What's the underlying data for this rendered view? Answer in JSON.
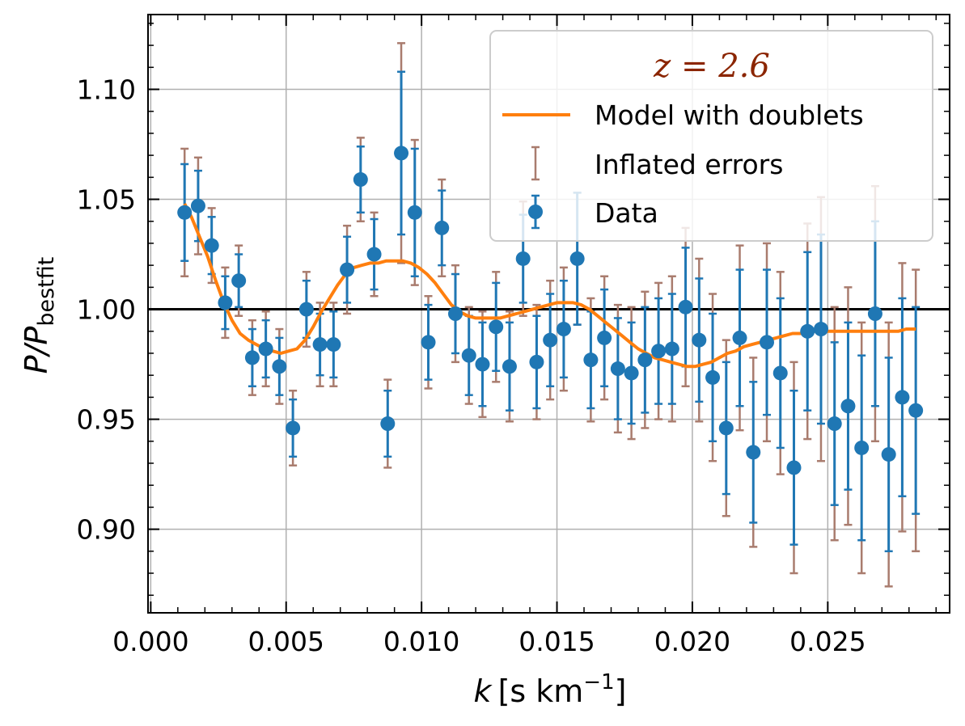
{
  "chart_data": {
    "type": "scatter",
    "xlabel": "k [s km⁻¹]",
    "xlabel_parts": {
      "var": "k",
      "unit": "[s km",
      "sup": "−1",
      "close": "]"
    },
    "ylabel_parts": {
      "main": "P/P",
      "sub": "bestfit"
    },
    "xlim": [
      -0.0001,
      0.0295
    ],
    "ylim": [
      0.862,
      1.134
    ],
    "xticks": [
      0.0,
      0.005,
      0.01,
      0.015,
      0.02,
      0.025
    ],
    "xtick_labels": [
      "0.000",
      "0.005",
      "0.010",
      "0.015",
      "0.020",
      "0.025"
    ],
    "yticks": [
      0.9,
      0.95,
      1.0,
      1.05,
      1.1
    ],
    "ytick_labels": [
      "0.90",
      "0.95",
      "1.00",
      "1.05",
      "1.10"
    ],
    "grid": true,
    "reference_line": 1.0,
    "legend_title": "z = 2.6",
    "legend_position": "top-right",
    "colors": {
      "data": "#1f77b4",
      "inflated": "#a97c6e",
      "model": "#ff7f0e",
      "title": "#8b2500",
      "grid": "#b0b0b0"
    },
    "series": [
      {
        "name": "Data",
        "x": [
          0.00125,
          0.00175,
          0.00225,
          0.00275,
          0.00325,
          0.00375,
          0.00425,
          0.00475,
          0.00525,
          0.00575,
          0.00625,
          0.00675,
          0.00725,
          0.00775,
          0.00825,
          0.00875,
          0.00925,
          0.00975,
          0.01025,
          0.01075,
          0.01125,
          0.01175,
          0.01225,
          0.01275,
          0.01325,
          0.01375,
          0.01425,
          0.01475,
          0.01525,
          0.01575,
          0.01625,
          0.01675,
          0.01725,
          0.01775,
          0.01825,
          0.01875,
          0.01925,
          0.01975,
          0.02025,
          0.02075,
          0.02125,
          0.02175,
          0.02225,
          0.02275,
          0.02325,
          0.02375,
          0.02425,
          0.02475,
          0.02525,
          0.02575,
          0.02625,
          0.02675,
          0.02725,
          0.02775,
          0.02825
        ],
        "y": [
          1.044,
          1.047,
          1.029,
          1.003,
          1.013,
          0.978,
          0.982,
          0.974,
          0.946,
          1.0,
          0.984,
          0.984,
          1.018,
          1.059,
          1.025,
          0.948,
          1.071,
          1.044,
          0.985,
          1.037,
          0.998,
          0.979,
          0.975,
          0.992,
          0.974,
          1.023,
          0.976,
          0.986,
          0.991,
          1.023,
          0.977,
          0.987,
          0.973,
          0.971,
          0.977,
          0.981,
          0.982,
          1.001,
          0.986,
          0.969,
          0.946,
          0.987,
          0.935,
          0.985,
          0.971,
          0.928,
          0.99,
          0.991,
          0.948,
          0.956,
          0.937,
          0.998,
          0.934,
          0.96,
          0.954
        ],
        "err": [
          0.022,
          0.016,
          0.013,
          0.012,
          0.012,
          0.013,
          0.013,
          0.013,
          0.013,
          0.013,
          0.014,
          0.015,
          0.015,
          0.015,
          0.016,
          0.015,
          0.037,
          0.029,
          0.017,
          0.017,
          0.018,
          0.018,
          0.019,
          0.02,
          0.02,
          0.02,
          0.021,
          0.021,
          0.022,
          0.03,
          0.022,
          0.022,
          0.023,
          0.023,
          0.024,
          0.024,
          0.025,
          0.027,
          0.028,
          0.029,
          0.03,
          0.031,
          0.032,
          0.033,
          0.034,
          0.035,
          0.036,
          0.043,
          0.037,
          0.038,
          0.042,
          0.042,
          0.044,
          0.045,
          0.047
        ]
      },
      {
        "name": "Inflated errors",
        "err": [
          0.029,
          0.022,
          0.017,
          0.016,
          0.016,
          0.017,
          0.017,
          0.017,
          0.017,
          0.017,
          0.019,
          0.019,
          0.02,
          0.019,
          0.019,
          0.02,
          0.05,
          0.033,
          0.021,
          0.022,
          0.022,
          0.022,
          0.024,
          0.025,
          0.025,
          0.026,
          0.026,
          0.027,
          0.028,
          0.03,
          0.028,
          0.028,
          0.029,
          0.03,
          0.031,
          0.031,
          0.033,
          0.036,
          0.037,
          0.038,
          0.04,
          0.042,
          0.043,
          0.045,
          0.046,
          0.048,
          0.049,
          0.06,
          0.053,
          0.054,
          0.057,
          0.058,
          0.06,
          0.061,
          0.064
        ]
      },
      {
        "name": "Model with doublets",
        "x": [
          0.00125,
          0.0015,
          0.0018,
          0.0021,
          0.0024,
          0.0027,
          0.003,
          0.0033,
          0.0036,
          0.0039,
          0.0042,
          0.0045,
          0.0048,
          0.0051,
          0.0054,
          0.0057,
          0.006,
          0.0063,
          0.0066,
          0.0069,
          0.0072,
          0.0075,
          0.0078,
          0.0081,
          0.0084,
          0.0087,
          0.009,
          0.0093,
          0.0096,
          0.0099,
          0.0102,
          0.0105,
          0.0108,
          0.0111,
          0.0114,
          0.0117,
          0.012,
          0.0123,
          0.0126,
          0.0129,
          0.0132,
          0.0135,
          0.0138,
          0.0141,
          0.0144,
          0.0147,
          0.015,
          0.0153,
          0.0156,
          0.0159,
          0.0162,
          0.0165,
          0.0168,
          0.0171,
          0.0174,
          0.0177,
          0.018,
          0.0183,
          0.0186,
          0.0189,
          0.0192,
          0.0195,
          0.0198,
          0.0201,
          0.0204,
          0.0207,
          0.021,
          0.0213,
          0.0216,
          0.0219,
          0.0222,
          0.0225,
          0.0228,
          0.0231,
          0.0234,
          0.0237,
          0.024,
          0.0243,
          0.0246,
          0.0249,
          0.0252,
          0.0255,
          0.0258,
          0.0261,
          0.0264,
          0.0267,
          0.027,
          0.0273,
          0.0276,
          0.0279,
          0.02825
        ],
        "y": [
          1.048,
          1.042,
          1.033,
          1.024,
          1.013,
          1.003,
          0.995,
          0.989,
          0.986,
          0.984,
          0.982,
          0.981,
          0.98,
          0.981,
          0.982,
          0.986,
          0.992,
          0.999,
          1.005,
          1.011,
          1.016,
          1.019,
          1.02,
          1.021,
          1.021,
          1.022,
          1.022,
          1.022,
          1.021,
          1.019,
          1.016,
          1.012,
          1.007,
          1.002,
          0.999,
          0.997,
          0.996,
          0.996,
          0.996,
          0.996,
          0.997,
          0.998,
          0.999,
          1.0,
          1.001,
          1.002,
          1.003,
          1.003,
          1.003,
          1.002,
          1.0,
          0.997,
          0.994,
          0.991,
          0.988,
          0.985,
          0.982,
          0.98,
          0.978,
          0.977,
          0.976,
          0.975,
          0.974,
          0.974,
          0.975,
          0.976,
          0.978,
          0.98,
          0.981,
          0.983,
          0.984,
          0.985,
          0.986,
          0.987,
          0.988,
          0.989,
          0.989,
          0.99,
          0.99,
          0.99,
          0.99,
          0.99,
          0.99,
          0.99,
          0.99,
          0.99,
          0.99,
          0.99,
          0.99,
          0.991,
          0.991
        ]
      }
    ]
  }
}
